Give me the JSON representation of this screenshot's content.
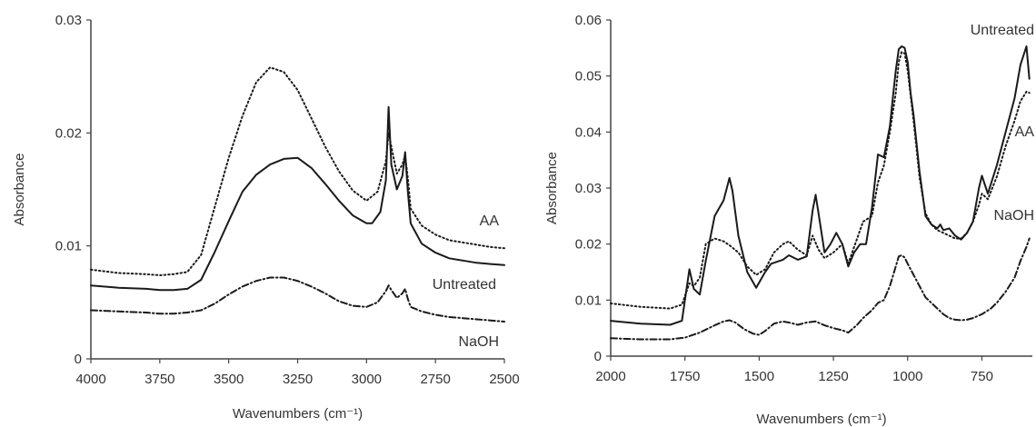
{
  "chart_data": [
    {
      "type": "line",
      "title": "",
      "xlabel": "Wavenumbers (cm⁻¹)",
      "ylabel": "Absorbance",
      "xlim": [
        4000,
        2500
      ],
      "ylim": [
        0,
        0.03
      ],
      "x_reversed": true,
      "grid": false,
      "xticks": [
        "4000",
        "3750",
        "3500",
        "3250",
        "3000",
        "2750",
        "2500"
      ],
      "xtick_values": [
        4000,
        3750,
        3500,
        3250,
        3000,
        2750,
        2500
      ],
      "yticks": [
        "0",
        "0.01",
        "0.02",
        "0.03"
      ],
      "ytick_values": [
        0,
        0.01,
        0.02,
        0.03
      ],
      "series": [
        {
          "name": "AA",
          "style": "dotted",
          "x": [
            4000,
            3900,
            3800,
            3750,
            3700,
            3650,
            3600,
            3550,
            3500,
            3450,
            3400,
            3350,
            3300,
            3250,
            3200,
            3150,
            3100,
            3050,
            3000,
            2960,
            2930,
            2920,
            2910,
            2890,
            2870,
            2860,
            2850,
            2840,
            2800,
            2750,
            2700,
            2650,
            2600,
            2550,
            2500
          ],
          "y": [
            0.0079,
            0.0076,
            0.0075,
            0.0074,
            0.0075,
            0.0077,
            0.0092,
            0.0135,
            0.0178,
            0.0215,
            0.0245,
            0.0258,
            0.0254,
            0.0238,
            0.0213,
            0.0188,
            0.0166,
            0.0149,
            0.014,
            0.0148,
            0.0175,
            0.02,
            0.0188,
            0.0164,
            0.0172,
            0.018,
            0.016,
            0.0133,
            0.0118,
            0.011,
            0.0105,
            0.0103,
            0.0101,
            0.0099,
            0.0098
          ]
        },
        {
          "name": "Untreated",
          "style": "solid",
          "x": [
            4000,
            3900,
            3800,
            3750,
            3700,
            3650,
            3600,
            3550,
            3500,
            3450,
            3400,
            3350,
            3300,
            3250,
            3200,
            3150,
            3100,
            3050,
            3000,
            2980,
            2950,
            2930,
            2920,
            2910,
            2890,
            2870,
            2860,
            2850,
            2840,
            2800,
            2750,
            2700,
            2650,
            2600,
            2550,
            2500
          ],
          "y": [
            0.0065,
            0.0063,
            0.0062,
            0.0061,
            0.0061,
            0.0062,
            0.007,
            0.0095,
            0.0122,
            0.0148,
            0.0163,
            0.0172,
            0.0177,
            0.0178,
            0.0169,
            0.0155,
            0.014,
            0.0127,
            0.012,
            0.012,
            0.013,
            0.0158,
            0.0223,
            0.0172,
            0.015,
            0.0162,
            0.0183,
            0.0148,
            0.012,
            0.0102,
            0.0094,
            0.0089,
            0.0087,
            0.0085,
            0.0084,
            0.0083
          ]
        },
        {
          "name": "NaOH",
          "style": "dash-dot",
          "x": [
            4000,
            3900,
            3800,
            3750,
            3700,
            3650,
            3600,
            3550,
            3500,
            3450,
            3400,
            3350,
            3300,
            3250,
            3200,
            3150,
            3100,
            3050,
            3000,
            2960,
            2930,
            2920,
            2910,
            2890,
            2870,
            2860,
            2850,
            2840,
            2800,
            2750,
            2700,
            2650,
            2600,
            2550,
            2500
          ],
          "y": [
            0.0043,
            0.0042,
            0.0041,
            0.004,
            0.004,
            0.0041,
            0.0043,
            0.0049,
            0.0057,
            0.0064,
            0.0069,
            0.0072,
            0.0072,
            0.0069,
            0.0064,
            0.0058,
            0.0051,
            0.0047,
            0.0046,
            0.005,
            0.006,
            0.0065,
            0.0061,
            0.0054,
            0.0058,
            0.0062,
            0.0053,
            0.0046,
            0.0042,
            0.0039,
            0.0037,
            0.0036,
            0.0035,
            0.0034,
            0.0033
          ]
        }
      ]
    },
    {
      "type": "line",
      "title": "",
      "xlabel": "Wavenumbers (cm⁻¹)",
      "ylabel": "Absorbance",
      "xlim": [
        2000,
        580
      ],
      "ylim": [
        0,
        0.06
      ],
      "x_reversed": true,
      "grid": false,
      "xticks": [
        "2000",
        "1750",
        "1500",
        "1250",
        "1000",
        "750"
      ],
      "xtick_values": [
        2000,
        1750,
        1500,
        1250,
        1000,
        750
      ],
      "yticks": [
        "0",
        "0.01",
        "0.02",
        "0.03",
        "0.04",
        "0.05",
        "0.06"
      ],
      "ytick_values": [
        0,
        0.01,
        0.02,
        0.03,
        0.04,
        0.05,
        0.06
      ],
      "series": [
        {
          "name": "Untreated",
          "style": "solid",
          "x": [
            2000,
            1900,
            1800,
            1760,
            1735,
            1720,
            1700,
            1680,
            1650,
            1620,
            1600,
            1590,
            1570,
            1540,
            1510,
            1480,
            1460,
            1420,
            1400,
            1370,
            1340,
            1320,
            1310,
            1300,
            1280,
            1260,
            1240,
            1220,
            1200,
            1180,
            1160,
            1140,
            1120,
            1100,
            1080,
            1060,
            1050,
            1040,
            1030,
            1020,
            1010,
            1000,
            990,
            980,
            960,
            940,
            920,
            900,
            890,
            880,
            860,
            840,
            820,
            800,
            780,
            760,
            750,
            730,
            700,
            670,
            640,
            620,
            600,
            590
          ],
          "y": [
            0.0063,
            0.0058,
            0.0056,
            0.0063,
            0.0155,
            0.012,
            0.011,
            0.017,
            0.025,
            0.0278,
            0.0318,
            0.0295,
            0.0215,
            0.015,
            0.0122,
            0.015,
            0.0165,
            0.0172,
            0.018,
            0.0172,
            0.0178,
            0.026,
            0.0288,
            0.0255,
            0.0185,
            0.02,
            0.022,
            0.02,
            0.016,
            0.0185,
            0.02,
            0.02,
            0.0265,
            0.036,
            0.0355,
            0.041,
            0.046,
            0.051,
            0.0548,
            0.0553,
            0.055,
            0.0525,
            0.047,
            0.043,
            0.033,
            0.025,
            0.0235,
            0.0228,
            0.0235,
            0.0225,
            0.0228,
            0.0215,
            0.0208,
            0.022,
            0.024,
            0.03,
            0.0322,
            0.029,
            0.034,
            0.04,
            0.046,
            0.052,
            0.0553,
            0.0495
          ]
        },
        {
          "name": "AA",
          "style": "dotted",
          "x": [
            2000,
            1900,
            1800,
            1760,
            1735,
            1720,
            1700,
            1680,
            1650,
            1620,
            1600,
            1570,
            1540,
            1510,
            1480,
            1450,
            1420,
            1400,
            1370,
            1340,
            1320,
            1300,
            1280,
            1250,
            1220,
            1200,
            1180,
            1150,
            1120,
            1100,
            1080,
            1060,
            1040,
            1030,
            1020,
            1010,
            1000,
            980,
            960,
            940,
            920,
            900,
            880,
            860,
            840,
            820,
            800,
            780,
            760,
            750,
            730,
            700,
            670,
            640,
            620,
            600,
            590
          ],
          "y": [
            0.0094,
            0.0088,
            0.0085,
            0.0092,
            0.013,
            0.0125,
            0.014,
            0.02,
            0.021,
            0.0205,
            0.0198,
            0.0185,
            0.016,
            0.0145,
            0.0155,
            0.0185,
            0.02,
            0.0205,
            0.019,
            0.018,
            0.0215,
            0.019,
            0.0175,
            0.0185,
            0.02,
            0.0165,
            0.0195,
            0.024,
            0.025,
            0.031,
            0.034,
            0.04,
            0.047,
            0.0525,
            0.0543,
            0.054,
            0.051,
            0.042,
            0.032,
            0.0255,
            0.0235,
            0.0225,
            0.022,
            0.0215,
            0.021,
            0.021,
            0.022,
            0.024,
            0.027,
            0.029,
            0.028,
            0.032,
            0.0375,
            0.042,
            0.0455,
            0.0472,
            0.047
          ]
        },
        {
          "name": "NaOH",
          "style": "dash-dot",
          "x": [
            2000,
            1900,
            1800,
            1750,
            1700,
            1650,
            1620,
            1600,
            1580,
            1550,
            1520,
            1500,
            1480,
            1450,
            1420,
            1400,
            1370,
            1340,
            1310,
            1280,
            1250,
            1220,
            1200,
            1170,
            1150,
            1120,
            1100,
            1080,
            1060,
            1040,
            1030,
            1020,
            1010,
            1000,
            980,
            960,
            940,
            920,
            900,
            880,
            860,
            840,
            820,
            800,
            780,
            750,
            720,
            700,
            670,
            640,
            620,
            600,
            590
          ],
          "y": [
            0.0032,
            0.003,
            0.003,
            0.0033,
            0.0042,
            0.0055,
            0.0062,
            0.0064,
            0.006,
            0.0048,
            0.004,
            0.0038,
            0.0045,
            0.0058,
            0.0062,
            0.006,
            0.0056,
            0.006,
            0.0062,
            0.0055,
            0.005,
            0.0046,
            0.0042,
            0.0056,
            0.0068,
            0.0082,
            0.0095,
            0.01,
            0.0125,
            0.016,
            0.0178,
            0.018,
            0.0176,
            0.0165,
            0.0145,
            0.0125,
            0.0105,
            0.0095,
            0.0085,
            0.0075,
            0.0068,
            0.0065,
            0.0064,
            0.0065,
            0.0068,
            0.0075,
            0.0085,
            0.0095,
            0.0115,
            0.014,
            0.017,
            0.0195,
            0.021
          ]
        }
      ]
    }
  ]
}
